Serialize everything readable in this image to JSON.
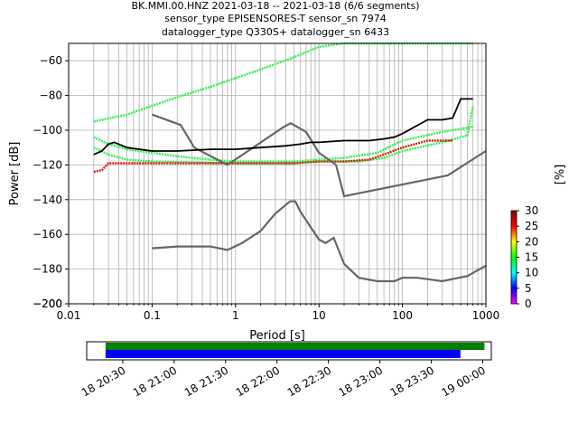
{
  "header": {
    "line1": "BK.MMI.00.HNZ   2021-03-18 -- 2021-03-18  (6/6 segments)",
    "line2": "sensor_type EPISENSORES-T sensor_sn 7974",
    "line3": "datalogger_type Q330S+ datalogger_sn 6433"
  },
  "chart_data": [
    {
      "type": "heatmap",
      "title": "",
      "xlabel": "Period [s]",
      "ylabel": "Power [dB]",
      "xscale": "log",
      "xlim": [
        0.01,
        1000
      ],
      "ylim": [
        -200,
        -50
      ],
      "x_ticks": [
        {
          "v": 0.01,
          "label": "0.01"
        },
        {
          "v": 0.1,
          "label": "0.1"
        },
        {
          "v": 1,
          "label": "1"
        },
        {
          "v": 10,
          "label": "10"
        },
        {
          "v": 100,
          "label": "100"
        },
        {
          "v": 1000,
          "label": "1000"
        }
      ],
      "y_ticks": [
        {
          "v": -60,
          "label": "−60"
        },
        {
          "v": -80,
          "label": "−80"
        },
        {
          "v": -100,
          "label": "−100"
        },
        {
          "v": -120,
          "label": "−120"
        },
        {
          "v": -140,
          "label": "−140"
        },
        {
          "v": -160,
          "label": "−160"
        },
        {
          "v": -180,
          "label": "−180"
        },
        {
          "v": -200,
          "label": "−200"
        }
      ],
      "grid": true,
      "colorbar": {
        "label": "[%]",
        "min": 0,
        "max": 30,
        "ticks": [
          {
            "v": 0,
            "label": "0"
          },
          {
            "v": 5,
            "label": "5"
          },
          {
            "v": 10,
            "label": "10"
          },
          {
            "v": 15,
            "label": "15"
          },
          {
            "v": 20,
            "label": "20"
          },
          {
            "v": 25,
            "label": "25"
          },
          {
            "v": 30,
            "label": "30"
          }
        ],
        "colors": [
          "#ff00ff",
          "#0000ff",
          "#00ffff",
          "#00ff00",
          "#ffff00",
          "#ff0000",
          "#800000"
        ]
      },
      "density_traces": [
        {
          "name": "upper-green",
          "color": "#33ee55",
          "points": [
            [
              0.02,
              -95
            ],
            [
              0.05,
              -91
            ],
            [
              0.1,
              -86
            ],
            [
              0.2,
              -81
            ],
            [
              0.5,
              -75
            ],
            [
              1,
              -70
            ],
            [
              2,
              -65
            ],
            [
              5,
              -58
            ],
            [
              10,
              -52
            ],
            [
              20,
              -50
            ],
            [
              700,
              -50
            ]
          ]
        },
        {
          "name": "middle-green",
          "color": "#33ee55",
          "points": [
            [
              0.02,
              -104
            ],
            [
              0.03,
              -108
            ],
            [
              0.05,
              -111
            ],
            [
              0.1,
              -113
            ],
            [
              0.2,
              -115
            ],
            [
              0.5,
              -117
            ],
            [
              1,
              -118
            ],
            [
              5,
              -118
            ],
            [
              10,
              -117
            ],
            [
              20,
              -116
            ],
            [
              50,
              -113
            ],
            [
              100,
              -106
            ],
            [
              300,
              -101
            ],
            [
              700,
              -98
            ]
          ]
        },
        {
          "name": "lower-green",
          "color": "#33ee55",
          "points": [
            [
              0.02,
              -110
            ],
            [
              0.03,
              -114
            ],
            [
              0.05,
              -117
            ],
            [
              0.1,
              -118
            ],
            [
              1,
              -119
            ],
            [
              5,
              -119
            ],
            [
              10,
              -118
            ],
            [
              30,
              -118
            ],
            [
              60,
              -116
            ],
            [
              100,
              -112
            ],
            [
              300,
              -107
            ],
            [
              600,
              -103
            ],
            [
              700,
              -86
            ]
          ]
        },
        {
          "name": "red-band",
          "color": "#cc2200",
          "points": [
            [
              0.02,
              -124
            ],
            [
              0.025,
              -123
            ],
            [
              0.03,
              -119
            ],
            [
              0.1,
              -119
            ],
            [
              1,
              -119
            ],
            [
              5,
              -119
            ],
            [
              10,
              -118
            ],
            [
              20,
              -118
            ],
            [
              40,
              -117
            ],
            [
              60,
              -114
            ],
            [
              100,
              -110
            ],
            [
              200,
              -106
            ],
            [
              400,
              -106
            ]
          ]
        }
      ],
      "mean_curve": {
        "name": "mean",
        "color": "#000000",
        "points": [
          [
            0.02,
            -114
          ],
          [
            0.025,
            -112
          ],
          [
            0.03,
            -108
          ],
          [
            0.035,
            -107
          ],
          [
            0.05,
            -110
          ],
          [
            0.1,
            -112
          ],
          [
            0.2,
            -112
          ],
          [
            0.5,
            -111
          ],
          [
            1,
            -111
          ],
          [
            2,
            -110
          ],
          [
            4,
            -109
          ],
          [
            6,
            -108
          ],
          [
            8,
            -107
          ],
          [
            10,
            -107
          ],
          [
            20,
            -106
          ],
          [
            40,
            -106
          ],
          [
            60,
            -105
          ],
          [
            80,
            -104
          ],
          [
            100,
            -102
          ],
          [
            200,
            -94
          ],
          [
            300,
            -94
          ],
          [
            400,
            -93
          ],
          [
            500,
            -82
          ],
          [
            700,
            -82
          ]
        ]
      },
      "noise_models": [
        {
          "name": "high-noise-model",
          "color": "#666666",
          "points": [
            [
              0.1,
              -91
            ],
            [
              0.22,
              -97
            ],
            [
              0.32,
              -110
            ],
            [
              0.8,
              -120
            ],
            [
              3.8,
              -98
            ],
            [
              4.6,
              -96
            ],
            [
              7,
              -101
            ],
            [
              10,
              -113
            ],
            [
              16,
              -120
            ],
            [
              20,
              -138
            ],
            [
              350,
              -126
            ],
            [
              1000,
              -112
            ]
          ]
        },
        {
          "name": "low-noise-model",
          "color": "#666666",
          "points": [
            [
              0.1,
              -168
            ],
            [
              0.2,
              -167
            ],
            [
              0.5,
              -167
            ],
            [
              0.8,
              -169
            ],
            [
              1.2,
              -165
            ],
            [
              2,
              -158
            ],
            [
              3,
              -148
            ],
            [
              4.5,
              -141
            ],
            [
              5.2,
              -141
            ],
            [
              6,
              -147
            ],
            [
              10,
              -163
            ],
            [
              12,
              -165
            ],
            [
              15,
              -162
            ],
            [
              20,
              -177
            ],
            [
              30,
              -185
            ],
            [
              50,
              -187
            ],
            [
              80,
              -187
            ],
            [
              100,
              -185
            ],
            [
              150,
              -185
            ],
            [
              300,
              -187
            ],
            [
              600,
              -184
            ],
            [
              1000,
              -178
            ]
          ]
        }
      ]
    },
    {
      "type": "timeline",
      "x_ticks": [
        {
          "v": "2021-03-18T20:30:00",
          "label": "18 20:30"
        },
        {
          "v": "2021-03-18T21:00:00",
          "label": "18 21:00"
        },
        {
          "v": "2021-03-18T21:30:00",
          "label": "18 21:30"
        },
        {
          "v": "2021-03-18T22:00:00",
          "label": "18 22:00"
        },
        {
          "v": "2021-03-18T22:30:00",
          "label": "18 22:30"
        },
        {
          "v": "2021-03-18T23:00:00",
          "label": "18 23:00"
        },
        {
          "v": "2021-03-18T23:30:00",
          "label": "18 23:30"
        },
        {
          "v": "2021-03-19T00:00:00",
          "label": "19 00:00"
        }
      ],
      "xlim": [
        "2021-03-18T20:09:00",
        "2021-03-19T00:05:00"
      ],
      "bars": [
        {
          "name": "data-segments",
          "color": "#008000",
          "start": "2021-03-18T20:20:00",
          "end": "2021-03-19T00:01:00"
        },
        {
          "name": "psd-segments",
          "color": "#0000ff",
          "start": "2021-03-18T20:20:00",
          "end": "2021-03-18T23:47:00"
        }
      ]
    }
  ]
}
